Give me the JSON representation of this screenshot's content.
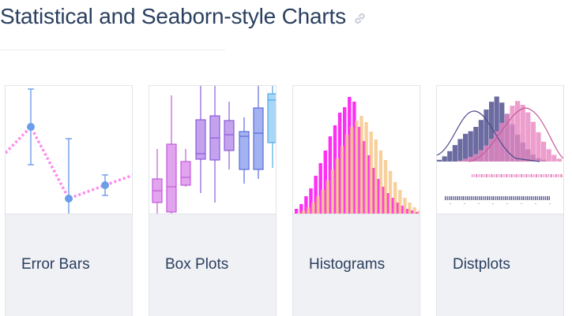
{
  "section": {
    "title": "Statistical and Seaborn-style Charts",
    "link_icon": "link-icon"
  },
  "cards": [
    {
      "label": "Error Bars",
      "thumbnail": "error-bars-chart"
    },
    {
      "label": "Box Plots",
      "thumbnail": "box-plots-chart"
    },
    {
      "label": "Histograms",
      "thumbnail": "histograms-chart"
    },
    {
      "label": "Distplots",
      "thumbnail": "distplots-chart"
    }
  ],
  "colors": {
    "title": "#2a3f5f",
    "card_bg": "#f0f1f5",
    "card_border": "#e1e4ea",
    "error_bar_line": "#ff88f0",
    "error_bar_marker": "#6b9de8",
    "histogram_a": "#ff2ef5",
    "histogram_b": "#f4c07c",
    "distplot_a": "#4a4a8c",
    "distplot_b": "#e986c0"
  }
}
